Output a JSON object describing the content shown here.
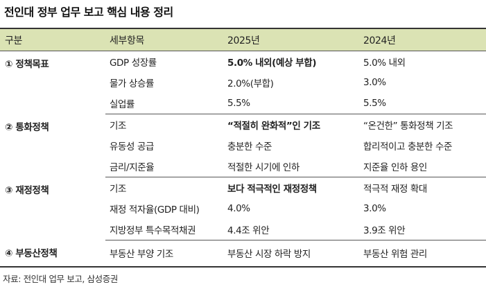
{
  "title": "전인대 정부 업무 보고 핵심 내용 정리",
  "table": {
    "headers": [
      "구분",
      "세부항목",
      "2025년",
      "2024년"
    ],
    "groups": [
      {
        "category": "① 정책목표",
        "rows": [
          {
            "item": "GDP 성장률",
            "y2025": "5.0% 내외(예상 부합)",
            "y2024": "5.0% 내외",
            "bold2025": true
          },
          {
            "item": "물가 상승률",
            "y2025": "2.0%(부합)",
            "y2024": "3.0%",
            "bold2025": false
          },
          {
            "item": "실업률",
            "y2025": "5.5%",
            "y2024": "5.5%",
            "bold2025": false
          }
        ]
      },
      {
        "category": "② 통화정책",
        "rows": [
          {
            "item": "기조",
            "y2025": "“적절히 완화적”인 기조",
            "y2024": "“온건한” 통화정책 기조",
            "bold2025": true
          },
          {
            "item": "유동성 공급",
            "y2025": "충분한 수준",
            "y2024": "합리적이고 충분한 수준",
            "bold2025": false
          },
          {
            "item": "금리/지준율",
            "y2025": "적절한 시기에 인하",
            "y2024": "지준율 인하 용인",
            "bold2025": false
          }
        ]
      },
      {
        "category": "③ 재정정책",
        "rows": [
          {
            "item": "기조",
            "y2025": "보다 적극적인 재정정책",
            "y2024": "적극적 재정 확대",
            "bold2025": true
          },
          {
            "item": "재정 적자율(GDP 대비)",
            "y2025": "4.0%",
            "y2024": "3.0%",
            "bold2025": false
          },
          {
            "item": "지방정부 특수목적채권",
            "y2025": "4.4조 위안",
            "y2024": "3.9조 위안",
            "bold2025": false
          }
        ]
      },
      {
        "category": "④ 부동산정책",
        "rows": [
          {
            "item": "부동산 부양 기조",
            "y2025": "부동산 시장 하락 방지",
            "y2024": "부동산 위험 관리",
            "bold2025": false
          }
        ]
      }
    ]
  },
  "source": "자료: 전인대 업무 보고, 삼성증권"
}
